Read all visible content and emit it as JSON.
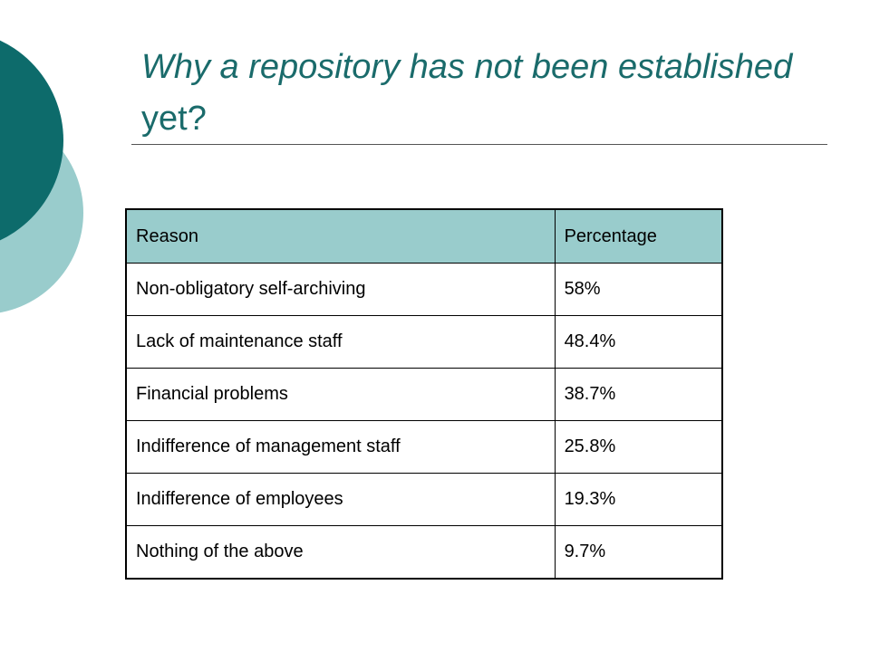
{
  "slide": {
    "title_italic": "Why a repository has not been established",
    "title_regular": " yet?",
    "accent_colors": {
      "dark_teal": "#0d6b6b",
      "light_teal": "#99cccc"
    }
  },
  "table": {
    "headers": {
      "reason": "Reason",
      "percentage": "Percentage"
    },
    "rows": [
      {
        "reason": "Non-obligatory self-archiving",
        "percentage": "58%"
      },
      {
        "reason": "Lack of maintenance staff",
        "percentage": "48.4%"
      },
      {
        "reason": "Financial problems",
        "percentage": "38.7%"
      },
      {
        "reason": "Indifference of management staff",
        "percentage": "25.8%"
      },
      {
        "reason": "Indifference of employees",
        "percentage": "19.3%"
      },
      {
        "reason": "Nothing of the above",
        "percentage": "9.7%"
      }
    ]
  }
}
